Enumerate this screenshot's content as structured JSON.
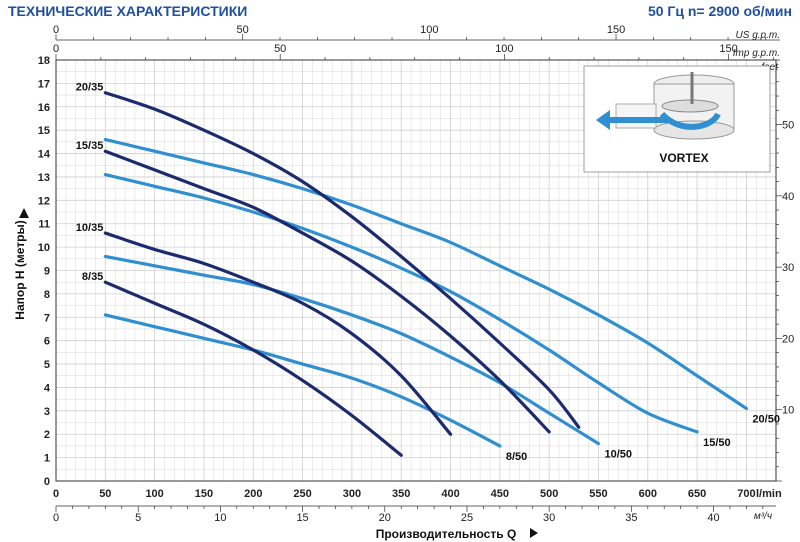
{
  "header": {
    "title": "ТЕХНИЧЕСКИЕ ХАРАКТЕРИСТИКИ",
    "spec": "50 Гц  n= 2900 об/мин"
  },
  "top_axes": {
    "us_label": "US g.p.m.",
    "imp_label": "Imp g.p.m.",
    "us_ticks": [
      0,
      50,
      100,
      150
    ],
    "imp_ticks": [
      0,
      50,
      100,
      150
    ]
  },
  "right_axis": {
    "label": "feet",
    "ticks": [
      10,
      20,
      30,
      40,
      50
    ]
  },
  "bottom_axes": {
    "lmin_label": "l/min",
    "m3h_label": "м³/ч",
    "m3h_ticks": [
      0,
      5,
      10,
      15,
      20,
      25,
      30,
      35,
      40
    ]
  },
  "inset": {
    "label": "VORTEX"
  },
  "colors": {
    "dark_series": "#1c2a6e",
    "light_series": "#2f8fd0",
    "grid": "#cfcfcf",
    "header": "#1f4f9e"
  },
  "chart_data": {
    "type": "line",
    "title": "",
    "xlabel": "Производительность Q",
    "ylabel": "Напор H  (метры)",
    "xlim": [
      0,
      730
    ],
    "ylim": [
      0,
      18
    ],
    "x_ticks": [
      0,
      50,
      100,
      150,
      200,
      250,
      300,
      350,
      400,
      450,
      500,
      550,
      600,
      650,
      700
    ],
    "y_ticks": [
      0,
      1,
      2,
      3,
      4,
      5,
      6,
      7,
      8,
      9,
      10,
      11,
      12,
      13,
      14,
      15,
      16,
      17,
      18
    ],
    "grid": true,
    "series": [
      {
        "name": "20/35",
        "style": "dark",
        "label_pos": "left",
        "x": [
          50,
          100,
          150,
          200,
          250,
          300,
          350,
          400,
          450,
          500,
          530
        ],
        "y": [
          16.6,
          15.9,
          15.0,
          14.0,
          12.8,
          11.3,
          9.6,
          7.8,
          5.9,
          3.9,
          2.3
        ]
      },
      {
        "name": "15/35",
        "style": "dark",
        "label_pos": "left",
        "x": [
          50,
          100,
          150,
          200,
          250,
          300,
          350,
          400,
          450,
          500
        ],
        "y": [
          14.1,
          13.3,
          12.5,
          11.7,
          10.6,
          9.4,
          7.9,
          6.2,
          4.3,
          2.1
        ]
      },
      {
        "name": "10/35",
        "style": "dark",
        "label_pos": "left",
        "x": [
          50,
          100,
          150,
          200,
          250,
          300,
          350,
          400
        ],
        "y": [
          10.6,
          9.9,
          9.3,
          8.5,
          7.6,
          6.3,
          4.5,
          2.0
        ]
      },
      {
        "name": "8/35",
        "style": "dark",
        "label_pos": "left",
        "x": [
          50,
          100,
          150,
          200,
          250,
          300,
          350
        ],
        "y": [
          8.5,
          7.6,
          6.7,
          5.6,
          4.3,
          2.8,
          1.1
        ]
      },
      {
        "name": "20/50",
        "style": "light",
        "label_pos": "right",
        "x": [
          50,
          100,
          150,
          200,
          250,
          300,
          350,
          400,
          450,
          500,
          550,
          600,
          650,
          700
        ],
        "y": [
          14.6,
          14.1,
          13.6,
          13.1,
          12.5,
          11.8,
          11.0,
          10.2,
          9.2,
          8.2,
          7.1,
          5.9,
          4.5,
          3.1
        ]
      },
      {
        "name": "15/50",
        "style": "light",
        "label_pos": "right",
        "x": [
          50,
          100,
          150,
          200,
          250,
          300,
          350,
          400,
          450,
          500,
          550,
          600,
          650
        ],
        "y": [
          13.1,
          12.6,
          12.1,
          11.5,
          10.8,
          10.0,
          9.1,
          8.1,
          6.9,
          5.6,
          4.2,
          2.9,
          2.1
        ]
      },
      {
        "name": "10/50",
        "style": "light",
        "label_pos": "right",
        "x": [
          50,
          100,
          150,
          200,
          250,
          300,
          350,
          400,
          450,
          500,
          550
        ],
        "y": [
          9.6,
          9.2,
          8.8,
          8.4,
          7.8,
          7.1,
          6.3,
          5.3,
          4.2,
          2.9,
          1.6
        ]
      },
      {
        "name": "8/50",
        "style": "light",
        "label_pos": "right",
        "x": [
          50,
          100,
          150,
          200,
          250,
          300,
          350,
          400,
          450
        ],
        "y": [
          7.1,
          6.6,
          6.1,
          5.6,
          5.0,
          4.4,
          3.6,
          2.6,
          1.5
        ]
      }
    ]
  }
}
